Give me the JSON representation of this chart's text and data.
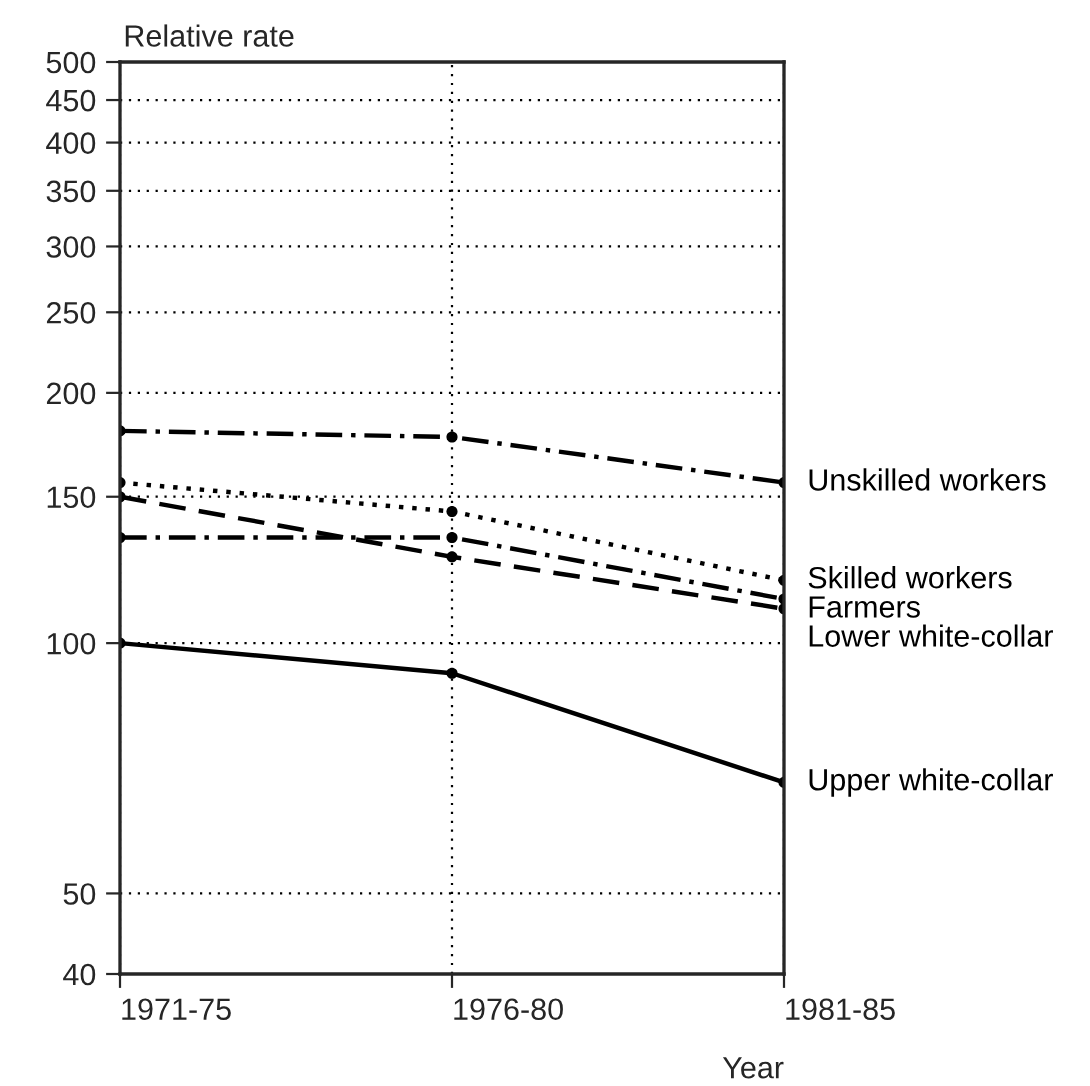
{
  "chart_data": {
    "type": "line",
    "ylabel": "Relative rate",
    "xlabel": "Year",
    "categories": [
      "1971-75",
      "1976-80",
      "1981-85"
    ],
    "series": [
      {
        "name": "Unskilled workers",
        "color": "#000000",
        "line_style": "dashdot",
        "values": [
          180,
          177,
          156
        ]
      },
      {
        "name": "Skilled workers",
        "color": "#000000",
        "line_style": "dotted",
        "values": [
          156,
          144,
          119
        ]
      },
      {
        "name": "Farmers",
        "color": "#000000",
        "line_style": "dashdot",
        "values": [
          134,
          134,
          113
        ]
      },
      {
        "name": "Lower white-collar",
        "color": "#000000",
        "line_style": "dashed",
        "values": [
          150,
          127,
          110
        ]
      },
      {
        "name": "Upper white-collar",
        "color": "#000000",
        "line_style": "solid",
        "values": [
          100,
          92,
          68
        ]
      }
    ],
    "log": true,
    "ylim": [
      40,
      500
    ],
    "yticks": [
      40,
      50,
      100,
      150,
      200,
      250,
      300,
      350,
      400,
      450,
      500
    ],
    "grid": true,
    "marker": "circle",
    "legend": false
  }
}
